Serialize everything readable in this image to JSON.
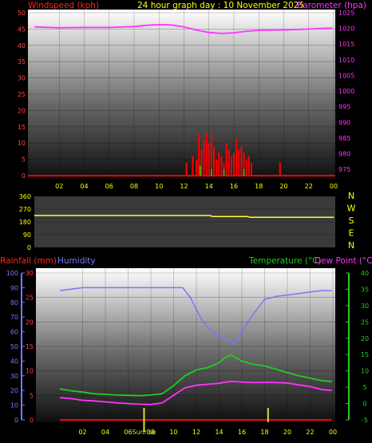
{
  "header": {
    "title": "24 hour graph day : 10 November 2025",
    "left_label": "Windspeed (kph)",
    "right_label": "Barometer (hpa)"
  },
  "colors": {
    "background": "#000000",
    "wind": "#ff0000",
    "gust": "#ff0000",
    "barometer": "#ff33ff",
    "direction": "#ffff33",
    "rain": "#ff0000",
    "humidity": "#7777ff",
    "temperature": "#22cc22",
    "dewpoint": "#ff33ff",
    "sunrise": "#dddd33",
    "axis_text": "#ffff00",
    "left_axis_text": "#ff4444",
    "right_axis_text": "#ff33ff"
  },
  "chart_data": [
    {
      "type": "line",
      "title": "24 hour graph day : 10 November 2025",
      "ylabel": "Windspeed (kph)",
      "ylim": [
        0,
        50
      ],
      "y_ticks": [
        0,
        5,
        10,
        15,
        20,
        25,
        30,
        35,
        40,
        45,
        50
      ],
      "y2label": "Barometer (hpa)",
      "y2lim": [
        973,
        1025
      ],
      "y2_ticks": [
        975,
        980,
        985,
        990,
        995,
        1000,
        1005,
        1010,
        1015,
        1020,
        1025
      ],
      "x_ticks": [
        "02",
        "04",
        "06",
        "08",
        "10",
        "12",
        "14",
        "16",
        "18",
        "20",
        "22",
        "00"
      ],
      "series": [
        {
          "name": "Barometer (hpa)",
          "axis": "right",
          "x": [
            0,
            2,
            4,
            6,
            8,
            9,
            10,
            11,
            12,
            13,
            14,
            15,
            16,
            17,
            18,
            19,
            20,
            22,
            23.9
          ],
          "values": [
            1020.5,
            1020.2,
            1020.3,
            1020.3,
            1020.6,
            1021.0,
            1021.2,
            1021.1,
            1020.5,
            1019.5,
            1018.7,
            1018.4,
            1018.6,
            1019.1,
            1019.4,
            1019.5,
            1019.5,
            1019.8,
            1020.1
          ]
        }
      ],
      "bars": {
        "name": "Windspeed (kph)",
        "axis": "left",
        "x": [
          12.2,
          12.7,
          13.0,
          13.2,
          13.4,
          13.6,
          13.8,
          14.0,
          14.2,
          14.4,
          14.6,
          14.8,
          15.0,
          15.2,
          15.4,
          15.6,
          15.8,
          16.0,
          16.2,
          16.4,
          16.6,
          16.8,
          17.0,
          17.2,
          17.4,
          19.7
        ],
        "values": [
          4,
          6,
          5,
          13,
          8,
          11,
          13,
          10,
          13,
          9,
          5,
          7,
          6,
          4,
          10,
          8,
          6,
          7,
          11,
          8,
          9,
          7,
          5,
          6,
          4,
          4
        ]
      },
      "gust_small": {
        "name": "Wind average",
        "x": [
          13.3,
          14.2,
          15.2,
          16.8
        ],
        "values": [
          3,
          2,
          2,
          2
        ]
      }
    },
    {
      "type": "line",
      "ylim": [
        0,
        360
      ],
      "y_ticks": [
        0,
        90,
        180,
        270,
        360
      ],
      "compass": [
        "N",
        "W",
        "S",
        "E",
        "N"
      ],
      "series": [
        {
          "name": "Wind direction",
          "x": [
            0,
            14,
            14.2,
            17,
            17.2,
            23.9
          ],
          "values": [
            225,
            225,
            218,
            218,
            212,
            212
          ]
        }
      ]
    },
    {
      "type": "line",
      "left1_label": "Rainfall (mm)",
      "left2_label": "Humidity",
      "right1_label": "Temperature (°C)",
      "right2_label": "Dew Point (°C)",
      "rain_lim": [
        0,
        30
      ],
      "rain_ticks": [
        0,
        5,
        10,
        15,
        20,
        25,
        30
      ],
      "humidity_lim": [
        0,
        100
      ],
      "humidity_ticks": [
        0,
        10,
        20,
        30,
        40,
        50,
        60,
        70,
        80,
        90,
        100
      ],
      "temp_lim": [
        -5,
        40
      ],
      "temp_ticks": [
        -5,
        0,
        5,
        10,
        15,
        20,
        25,
        30,
        35,
        40
      ],
      "x_ticks": [
        "02",
        "04",
        "06",
        "08",
        "10",
        "12",
        "14",
        "16",
        "18",
        "20",
        "22",
        "00"
      ],
      "sunrise_label": "Sunrise",
      "sunrise_x": 7.4,
      "sunset_x": 18.3,
      "series": [
        {
          "name": "Humidity",
          "axis": "humidity",
          "x": [
            0,
            1,
            2,
            4,
            6,
            8,
            10,
            10.8,
            11.5,
            12,
            12.5,
            13,
            13.5,
            14,
            14.5,
            15,
            15.3,
            15.6,
            16,
            16.5,
            17,
            17.5,
            18,
            19,
            20,
            21,
            22,
            23,
            23.9
          ],
          "values": [
            88,
            89,
            90,
            90,
            90,
            90,
            90,
            90,
            83,
            75,
            68,
            63,
            60,
            57,
            55,
            54,
            51,
            55,
            60,
            66,
            72,
            77,
            82,
            84,
            85,
            86,
            87,
            88,
            88
          ]
        },
        {
          "name": "Temperature (°C)",
          "axis": "temp",
          "x": [
            0,
            1,
            2,
            3,
            4,
            5,
            6,
            7,
            8,
            9,
            10,
            11,
            12,
            13,
            14,
            14.5,
            15,
            15.5,
            16,
            17,
            18,
            19,
            20,
            21,
            22,
            23,
            23.9
          ],
          "values": [
            4.5,
            3.9,
            3.5,
            3.0,
            2.8,
            2.6,
            2.5,
            2.4,
            2.6,
            3.0,
            5.5,
            8.5,
            10.3,
            11.0,
            12.5,
            14,
            14.9,
            14,
            13,
            12,
            11.5,
            10.5,
            9.5,
            8.5,
            7.8,
            7.0,
            6.8
          ]
        },
        {
          "name": "Dew Point (°C)",
          "axis": "temp",
          "x": [
            0,
            1,
            2,
            3,
            4,
            5,
            6,
            7,
            8,
            9,
            10,
            11,
            12,
            13,
            14,
            15,
            16,
            17,
            18,
            19,
            20,
            21,
            22,
            23,
            23.9
          ],
          "values": [
            1.8,
            1.5,
            1.0,
            0.8,
            0.5,
            0.2,
            0.0,
            -0.2,
            -0.3,
            0.2,
            2.5,
            4.8,
            5.6,
            5.9,
            6.2,
            6.8,
            6.6,
            6.4,
            6.5,
            6.4,
            6.3,
            5.7,
            5.2,
            4.3,
            4.0
          ]
        },
        {
          "name": "Rainfall (mm)",
          "axis": "rain",
          "x": [
            0,
            23.9
          ],
          "values": [
            0,
            0
          ]
        }
      ]
    }
  ]
}
